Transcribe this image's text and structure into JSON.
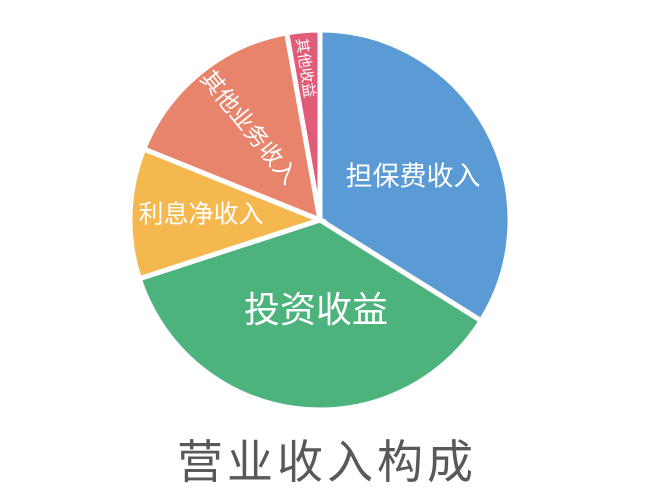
{
  "title": "营业收入构成",
  "colors": {
    "background": "#ffffff",
    "title_text": "#595959",
    "label_text": "#ffffff",
    "slice_gap": "#ffffff"
  },
  "chart_data": {
    "type": "pie",
    "title": "营业收入构成",
    "legend": "none",
    "labels_inside": true,
    "start_angle_deg": 0,
    "direction": "clockwise",
    "values_unit": "percent (estimated from arc angles; no numeric labels shown in chart)",
    "series": [
      {
        "name": "担保费收入",
        "value": 33.9,
        "color": "#5B9BD5"
      },
      {
        "name": "投资收益",
        "value": 36.1,
        "color": "#4DB37C"
      },
      {
        "name": "利息净收入",
        "value": 11.1,
        "color": "#F5B84F"
      },
      {
        "name": "其他业务收入",
        "value": 16.1,
        "color": "#E8836C"
      },
      {
        "name": "其他收益",
        "value": 2.8,
        "color": "#E05C78"
      }
    ]
  }
}
